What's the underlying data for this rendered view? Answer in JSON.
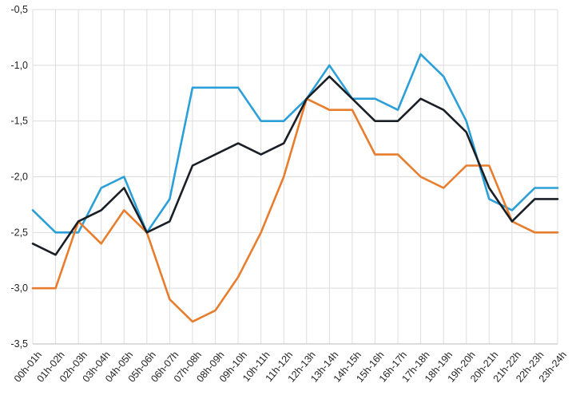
{
  "chart_data": {
    "type": "line",
    "title": "",
    "xlabel": "",
    "ylabel": "",
    "categories": [
      "00h-01h",
      "01h-02h",
      "02h-03h",
      "03h-04h",
      "04h-05h",
      "05h-06h",
      "06h-07h",
      "07h-08h",
      "08h-09h",
      "09h-10h",
      "10h-11h",
      "11h-12h",
      "12h-13h",
      "13h-14h",
      "14h-15h",
      "15h-16h",
      "16h-17h",
      "17h-18h",
      "18h-19h",
      "19h-20h",
      "20h-21h",
      "21h-22h",
      "22h-23h",
      "23h-24h"
    ],
    "ylim": [
      -3.5,
      -0.5
    ],
    "yticks": [
      -0.5,
      -1.0,
      -1.5,
      -2.0,
      -2.5,
      -3.0,
      -3.5
    ],
    "ytick_labels": [
      "-0,5",
      "-1,0",
      "-1,5",
      "-2,0",
      "-2,5",
      "-3,0",
      "-3,5"
    ],
    "grid": true,
    "series": [
      {
        "color": "#2b9fd8",
        "values": [
          -2.3,
          -2.5,
          -2.5,
          -2.1,
          -2.0,
          -2.5,
          -2.2,
          -1.2,
          -1.2,
          -1.2,
          -1.5,
          -1.5,
          -1.3,
          -1.0,
          -1.3,
          -1.3,
          -1.4,
          -0.9,
          -1.1,
          -1.5,
          -2.2,
          -2.3,
          -2.1,
          -2.1
        ]
      },
      {
        "color": "#e87d2e",
        "values": [
          -3.0,
          -3.0,
          -2.4,
          -2.6,
          -2.3,
          -2.5,
          -3.1,
          -3.3,
          -3.2,
          -2.9,
          -2.5,
          -2.0,
          -1.3,
          -1.4,
          -1.4,
          -1.8,
          -1.8,
          -2.0,
          -2.1,
          -1.9,
          -1.9,
          -2.4,
          -2.5,
          -2.5
        ]
      },
      {
        "color": "#1a1f26",
        "values": [
          -2.6,
          -2.7,
          -2.4,
          -2.3,
          -2.1,
          -2.5,
          -2.4,
          -1.9,
          -1.8,
          -1.7,
          -1.8,
          -1.7,
          -1.3,
          -1.1,
          -1.3,
          -1.5,
          -1.5,
          -1.3,
          -1.4,
          -1.6,
          -2.1,
          -2.4,
          -2.2,
          -2.2
        ]
      }
    ]
  }
}
